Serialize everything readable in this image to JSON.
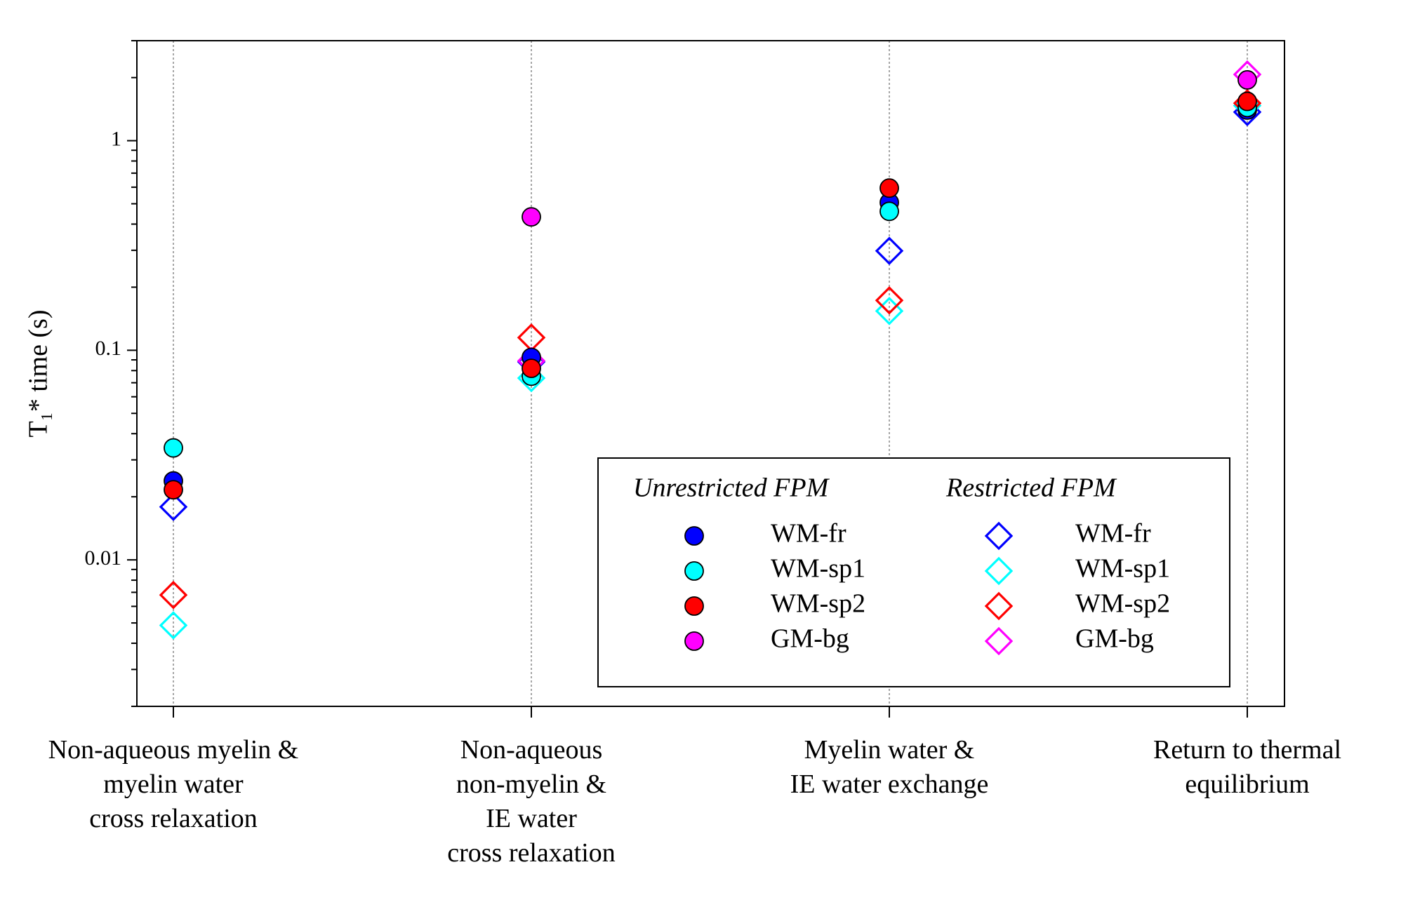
{
  "chart_data": {
    "type": "scatter",
    "ylabel": "T₁* time (s)",
    "categories": [
      "Non-aqueous myelin &\nmyelin water\ncross relaxation",
      "Non-aqueous\nnon-myelin &\nIE water\ncross relaxation",
      "Myelin water &\nIE water exchange",
      "Return to thermal\nequilibrium"
    ],
    "ylog": true,
    "ylim": [
      0.002,
      3
    ],
    "yticks": [
      0.01,
      0.1,
      1
    ],
    "yminorticks": [
      0.002,
      0.003,
      0.004,
      0.005,
      0.006,
      0.007,
      0.008,
      0.009,
      0.02,
      0.03,
      0.04,
      0.05,
      0.06,
      0.07,
      0.08,
      0.09,
      0.2,
      0.3,
      0.4,
      0.5,
      0.6,
      0.7,
      0.8,
      0.9,
      2,
      3
    ],
    "category_lines": true,
    "legend": {
      "position": "lower right",
      "groups": [
        "Unrestricted FPM",
        "Restricted FPM"
      ]
    },
    "series": [
      {
        "name": "WM-fr",
        "group": 0,
        "marker": "circle",
        "color": "#0000ff",
        "values": [
          0.0238,
          0.0925,
          0.507,
          1.4
        ]
      },
      {
        "name": "WM-sp1",
        "group": 0,
        "marker": "circle",
        "color": "#00ffff",
        "values": [
          0.0342,
          0.0752,
          0.46,
          1.44
        ]
      },
      {
        "name": "WM-sp2",
        "group": 0,
        "marker": "circle",
        "color": "#ff0000",
        "values": [
          0.0216,
          0.082,
          0.594,
          1.54
        ]
      },
      {
        "name": "GM-bg",
        "group": 0,
        "marker": "circle",
        "color": "#ff00ff",
        "values": [
          null,
          0.433,
          null,
          1.95
        ]
      },
      {
        "name": "WM-fr",
        "group": 1,
        "marker": "diamond",
        "color": "#0000ff",
        "values": [
          0.0179,
          0.088,
          0.298,
          1.37
        ]
      },
      {
        "name": "WM-sp1",
        "group": 1,
        "marker": "diamond",
        "color": "#00ffff",
        "values": [
          0.00487,
          0.0737,
          0.154,
          1.47
        ]
      },
      {
        "name": "WM-sp2",
        "group": 1,
        "marker": "diamond",
        "color": "#ff0000",
        "values": [
          0.0068,
          0.115,
          0.173,
          1.51
        ]
      },
      {
        "name": "GM-bg",
        "group": 1,
        "marker": "diamond",
        "color": "#ff00ff",
        "values": [
          null,
          0.089,
          null,
          2.07
        ]
      }
    ]
  }
}
